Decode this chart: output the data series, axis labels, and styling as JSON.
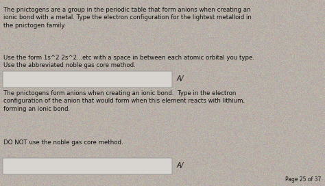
{
  "bg_color": "#b8b0a8",
  "text_color": "#111111",
  "box_color": "#d8d4cf",
  "box_border": "#999999",
  "para1": "The pnictogens are a group in the periodic table that form anions when creating an\nionic bond with a metal. Type the electron configuration for the lightest metalloid in\nthe pnictogen family.",
  "para2": "Use the form 1s^2 2s^2...etc with a space in between each atomic orbital you type.\nUse the abbreviated noble gas core method.",
  "para3": "The pnictogens form anions when creating an ionic bond.  Type in the electron\nconfiguration of the anion that would form when this element reacts with lithium,\nforming an ionic bond.",
  "para4": "DO NOT use the noble gas core method.",
  "page_text": "Page 25 of 37",
  "answer_symbol": "A/",
  "font_size_main": 6.2,
  "font_size_page": 5.5
}
